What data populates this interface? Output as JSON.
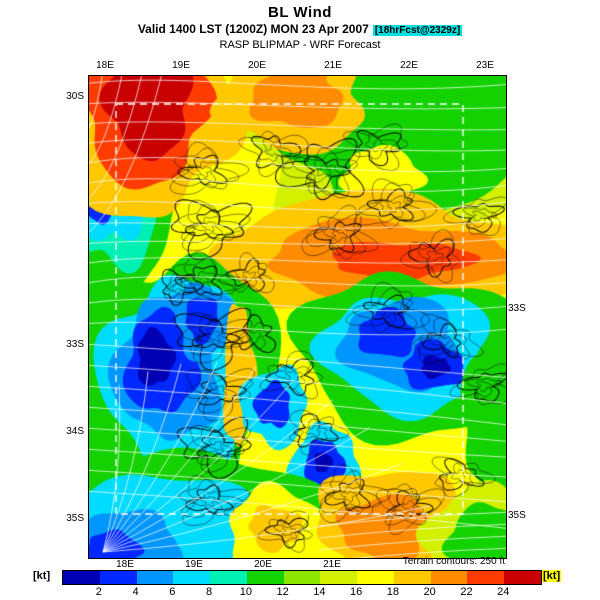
{
  "header": {
    "title": "BL Wind",
    "valid_prefix": "Valid 1400 LST (1200Z) MON 23 Apr 2007",
    "fcst_badge": "[18hrFcst@2329z]",
    "badge_bg": "#00e0e0",
    "model_line": "RASP BLIPMAP - WRF Forecast"
  },
  "map": {
    "top_lon_labels": [
      "18E",
      "19E",
      "20E",
      "21E",
      "22E",
      "23E"
    ],
    "bottom_lon_labels": [
      "18E",
      "19E",
      "20E",
      "21E"
    ],
    "left_lat_labels": [
      "30S",
      "33S",
      "34S",
      "35S"
    ],
    "right_lat_labels": [
      "33S",
      "35S"
    ],
    "terrain_note": "Terrain contours: 250 ft",
    "overlays": {
      "terrain_contour_color": "#000000",
      "streamline_color": "#ffffff",
      "domain_box_color": "#ffffff"
    }
  },
  "colorbar": {
    "units_left": "[kt]",
    "units_right": "[kt]",
    "units": "kt",
    "min": 2,
    "max": 24,
    "step": 2,
    "tick_labels": [
      "2",
      "4",
      "6",
      "8",
      "10",
      "12",
      "14",
      "16",
      "18",
      "20",
      "22",
      "24"
    ],
    "colors": [
      "#0000b4",
      "#0028ff",
      "#0096ff",
      "#00dcff",
      "#00f0b4",
      "#14d200",
      "#8ce600",
      "#d2f000",
      "#ffff00",
      "#ffc800",
      "#ff8c00",
      "#ff3c00",
      "#c80000"
    ]
  }
}
